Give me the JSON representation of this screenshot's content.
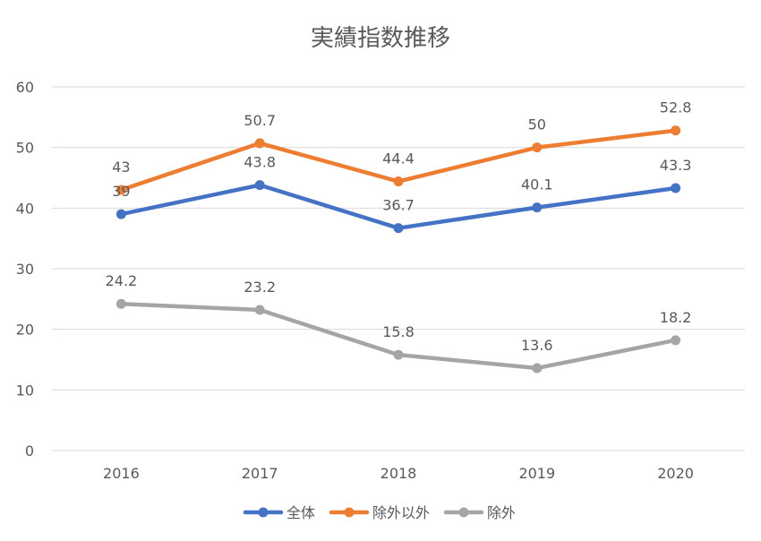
{
  "chart_data": {
    "type": "line",
    "title": "実績指数推移",
    "xlabel": "",
    "ylabel": "",
    "categories": [
      "2016",
      "2017",
      "2018",
      "2019",
      "2020"
    ],
    "ylim": [
      0,
      60
    ],
    "yticks": [
      0,
      10,
      20,
      30,
      40,
      50,
      60
    ],
    "grid": true,
    "legend_position": "bottom",
    "series": [
      {
        "name": "全体",
        "color": "#4472C4",
        "values": [
          39,
          43.8,
          36.7,
          40.1,
          43.3
        ],
        "labels": [
          "39",
          "43.8",
          "36.7",
          "40.1",
          "43.3"
        ]
      },
      {
        "name": "除外以外",
        "color": "#ED7D31",
        "values": [
          43,
          50.7,
          44.4,
          50,
          52.8
        ],
        "labels": [
          "43",
          "50.7",
          "44.4",
          "50",
          "52.8"
        ]
      },
      {
        "name": "除外",
        "color": "#A5A5A5",
        "values": [
          24.2,
          23.2,
          15.8,
          13.6,
          18.2
        ],
        "labels": [
          "24.2",
          "23.2",
          "15.8",
          "13.6",
          "18.2"
        ]
      }
    ]
  }
}
